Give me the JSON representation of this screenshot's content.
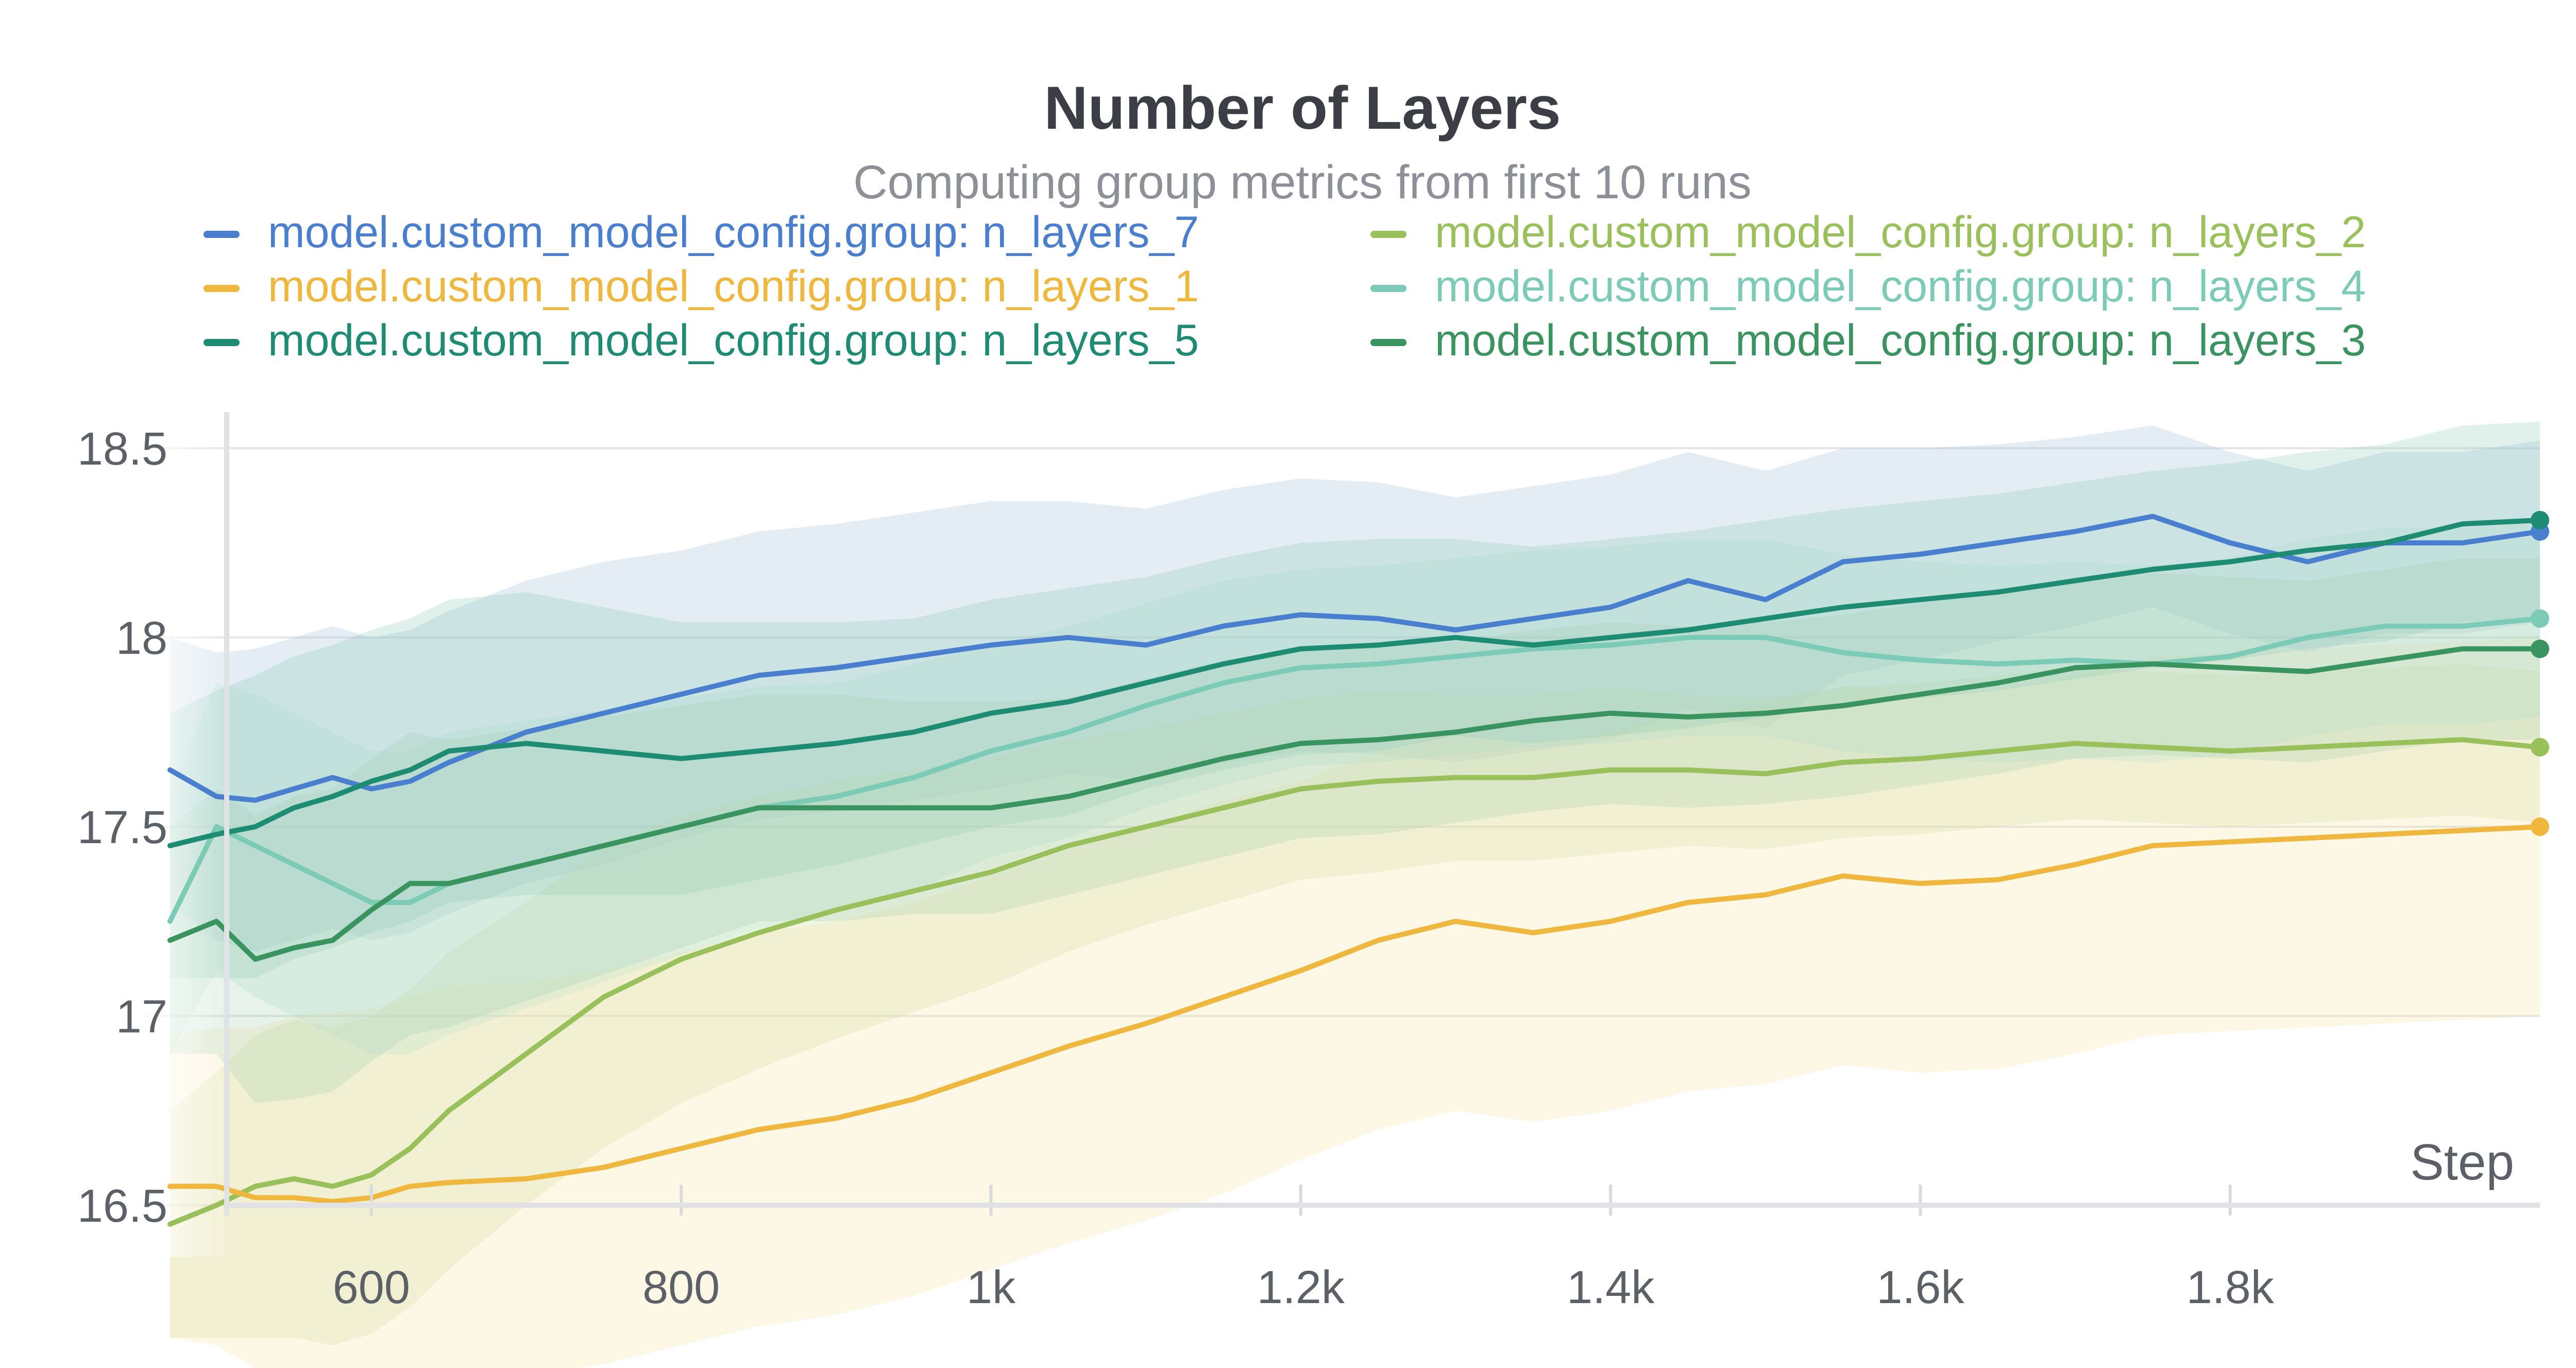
{
  "chart_data": {
    "type": "line",
    "title": "Number of Layers",
    "subtitle": "Computing group metrics from first 10 runs",
    "xlabel": "Step",
    "ylabel": "",
    "xlim": [
      470,
      2000
    ],
    "ylim": [
      16.5,
      18.65
    ],
    "xticks": [
      600,
      800,
      1000,
      1200,
      1400,
      1600,
      1800
    ],
    "xtick_labels": [
      "600",
      "800",
      "1k",
      "1.2k",
      "1.4k",
      "1.6k",
      "1.8k"
    ],
    "yticks": [
      16.5,
      17,
      17.5,
      18,
      18.5
    ],
    "ytick_labels": [
      "16.5",
      "17",
      "17.5",
      "18",
      "18.5"
    ],
    "grid": true,
    "legend_position": "top",
    "series": [
      {
        "name": "model.custom_model_config.group: n_layers_7",
        "color": "#4a7fcf",
        "band_color": "#9fbfd9",
        "x": [
          470,
          500,
          525,
          550,
          575,
          600,
          625,
          650,
          700,
          750,
          800,
          850,
          900,
          950,
          1000,
          1050,
          1100,
          1150,
          1200,
          1250,
          1300,
          1350,
          1400,
          1450,
          1500,
          1550,
          1600,
          1650,
          1700,
          1750,
          1800,
          1850,
          1900,
          1950,
          2000
        ],
        "y": [
          17.65,
          17.58,
          17.57,
          17.6,
          17.63,
          17.6,
          17.62,
          17.67,
          17.75,
          17.8,
          17.85,
          17.9,
          17.92,
          17.95,
          17.98,
          18.0,
          17.98,
          18.03,
          18.06,
          18.05,
          18.02,
          18.05,
          18.08,
          18.15,
          18.1,
          18.2,
          18.22,
          18.25,
          18.28,
          18.32,
          18.25,
          18.2,
          18.25,
          18.25,
          18.28
        ],
        "band": [
          0.35,
          0.38,
          0.4,
          0.4,
          0.4,
          0.4,
          0.4,
          0.4,
          0.4,
          0.4,
          0.38,
          0.38,
          0.38,
          0.38,
          0.38,
          0.36,
          0.36,
          0.36,
          0.36,
          0.36,
          0.35,
          0.35,
          0.35,
          0.34,
          0.34,
          0.3,
          0.28,
          0.26,
          0.25,
          0.24,
          0.24,
          0.24,
          0.24,
          0.24,
          0.24
        ]
      },
      {
        "name": "model.custom_model_config.group: n_layers_2",
        "color": "#99c05a",
        "band_color": "#c8de9c",
        "x": [
          470,
          500,
          525,
          550,
          575,
          600,
          625,
          650,
          700,
          750,
          800,
          850,
          900,
          950,
          1000,
          1050,
          1100,
          1150,
          1200,
          1250,
          1300,
          1350,
          1400,
          1450,
          1500,
          1550,
          1600,
          1650,
          1700,
          1750,
          1800,
          1850,
          1900,
          1950,
          2000
        ],
        "y": [
          16.45,
          16.5,
          16.55,
          16.57,
          16.55,
          16.58,
          16.65,
          16.75,
          16.9,
          17.05,
          17.15,
          17.22,
          17.28,
          17.33,
          17.38,
          17.45,
          17.5,
          17.55,
          17.6,
          17.62,
          17.63,
          17.63,
          17.65,
          17.65,
          17.64,
          17.67,
          17.68,
          17.7,
          17.72,
          17.71,
          17.7,
          17.71,
          17.72,
          17.73,
          17.71
        ],
        "band": [
          0.3,
          0.35,
          0.4,
          0.42,
          0.42,
          0.42,
          0.42,
          0.42,
          0.4,
          0.4,
          0.38,
          0.36,
          0.34,
          0.32,
          0.3,
          0.28,
          0.26,
          0.25,
          0.24,
          0.24,
          0.22,
          0.22,
          0.22,
          0.2,
          0.2,
          0.2,
          0.2,
          0.2,
          0.2,
          0.2,
          0.2,
          0.2,
          0.2,
          0.2,
          0.2
        ]
      },
      {
        "name": "model.custom_model_config.group: n_layers_1",
        "color": "#efb73e",
        "band_color": "#f7e3a6",
        "x": [
          470,
          500,
          525,
          550,
          575,
          600,
          625,
          650,
          700,
          750,
          800,
          850,
          900,
          950,
          1000,
          1050,
          1100,
          1150,
          1200,
          1250,
          1300,
          1350,
          1400,
          1450,
          1500,
          1550,
          1600,
          1650,
          1700,
          1750,
          1800,
          1850,
          1900,
          1950,
          2000
        ],
        "y": [
          16.55,
          16.55,
          16.52,
          16.52,
          16.51,
          16.52,
          16.55,
          16.56,
          16.57,
          16.6,
          16.65,
          16.7,
          16.73,
          16.78,
          16.85,
          16.92,
          16.98,
          17.05,
          17.12,
          17.2,
          17.25,
          17.22,
          17.25,
          17.3,
          17.32,
          17.37,
          17.35,
          17.36,
          17.4,
          17.45,
          17.46,
          17.47,
          17.48,
          17.49,
          17.5
        ],
        "band": [
          0.4,
          0.42,
          0.45,
          0.48,
          0.5,
          0.5,
          0.5,
          0.52,
          0.52,
          0.52,
          0.52,
          0.52,
          0.52,
          0.52,
          0.52,
          0.52,
          0.52,
          0.52,
          0.5,
          0.5,
          0.5,
          0.5,
          0.5,
          0.5,
          0.5,
          0.5,
          0.5,
          0.5,
          0.5,
          0.5,
          0.5,
          0.5,
          0.5,
          0.5,
          0.5
        ]
      },
      {
        "name": "model.custom_model_config.group: n_layers_4",
        "color": "#7ccbb6",
        "band_color": "#b7e2d2",
        "x": [
          470,
          500,
          525,
          550,
          575,
          600,
          625,
          650,
          700,
          750,
          800,
          850,
          900,
          950,
          1000,
          1050,
          1100,
          1150,
          1200,
          1250,
          1300,
          1350,
          1400,
          1450,
          1500,
          1550,
          1600,
          1650,
          1700,
          1750,
          1800,
          1850,
          1900,
          1950,
          2000
        ],
        "y": [
          17.25,
          17.5,
          17.45,
          17.4,
          17.35,
          17.3,
          17.3,
          17.35,
          17.4,
          17.45,
          17.5,
          17.55,
          17.58,
          17.63,
          17.7,
          17.75,
          17.82,
          17.88,
          17.92,
          17.93,
          17.95,
          17.97,
          17.98,
          18.0,
          18.0,
          17.96,
          17.94,
          17.93,
          17.94,
          17.93,
          17.95,
          18.0,
          18.03,
          18.03,
          18.05
        ],
        "band": [
          0.35,
          0.38,
          0.4,
          0.4,
          0.4,
          0.4,
          0.4,
          0.4,
          0.38,
          0.36,
          0.34,
          0.32,
          0.3,
          0.3,
          0.28,
          0.28,
          0.27,
          0.27,
          0.26,
          0.26,
          0.26,
          0.26,
          0.26,
          0.26,
          0.26,
          0.26,
          0.26,
          0.26,
          0.26,
          0.26,
          0.26,
          0.26,
          0.26,
          0.26,
          0.26
        ]
      },
      {
        "name": "model.custom_model_config.group: n_layers_5",
        "color": "#1e8c72",
        "band_color": "#8ec8b8",
        "x": [
          470,
          500,
          525,
          550,
          575,
          600,
          625,
          650,
          700,
          750,
          800,
          850,
          900,
          950,
          1000,
          1050,
          1100,
          1150,
          1200,
          1250,
          1300,
          1350,
          1400,
          1450,
          1500,
          1550,
          1600,
          1650,
          1700,
          1750,
          1800,
          1850,
          1900,
          1950,
          2000
        ],
        "y": [
          17.45,
          17.48,
          17.5,
          17.55,
          17.58,
          17.62,
          17.65,
          17.7,
          17.72,
          17.7,
          17.68,
          17.7,
          17.72,
          17.75,
          17.8,
          17.83,
          17.88,
          17.93,
          17.97,
          17.98,
          18.0,
          17.98,
          18.0,
          18.02,
          18.05,
          18.08,
          18.1,
          18.12,
          18.15,
          18.18,
          18.2,
          18.23,
          18.25,
          18.3,
          18.31
        ],
        "band": [
          0.35,
          0.38,
          0.4,
          0.4,
          0.4,
          0.4,
          0.4,
          0.4,
          0.4,
          0.38,
          0.36,
          0.34,
          0.32,
          0.3,
          0.3,
          0.3,
          0.28,
          0.28,
          0.28,
          0.28,
          0.26,
          0.26,
          0.26,
          0.26,
          0.26,
          0.26,
          0.26,
          0.26,
          0.26,
          0.26,
          0.26,
          0.26,
          0.26,
          0.26,
          0.26
        ]
      },
      {
        "name": "model.custom_model_config.group: n_layers_3",
        "color": "#3a9460",
        "band_color": "#a4d2b4",
        "x": [
          470,
          500,
          525,
          550,
          575,
          600,
          625,
          650,
          700,
          750,
          800,
          850,
          900,
          950,
          1000,
          1050,
          1100,
          1150,
          1200,
          1250,
          1300,
          1350,
          1400,
          1450,
          1500,
          1550,
          1600,
          1650,
          1700,
          1750,
          1800,
          1850,
          1900,
          1950,
          2000
        ],
        "y": [
          17.2,
          17.25,
          17.15,
          17.18,
          17.2,
          17.28,
          17.35,
          17.35,
          17.4,
          17.45,
          17.5,
          17.55,
          17.55,
          17.55,
          17.55,
          17.58,
          17.63,
          17.68,
          17.72,
          17.73,
          17.75,
          17.78,
          17.8,
          17.79,
          17.8,
          17.82,
          17.85,
          17.88,
          17.92,
          17.93,
          17.92,
          17.91,
          17.94,
          17.97,
          17.97
        ],
        "band": [
          0.3,
          0.35,
          0.38,
          0.4,
          0.4,
          0.4,
          0.4,
          0.38,
          0.36,
          0.34,
          0.32,
          0.3,
          0.3,
          0.28,
          0.28,
          0.26,
          0.26,
          0.26,
          0.25,
          0.25,
          0.24,
          0.24,
          0.24,
          0.24,
          0.24,
          0.24,
          0.24,
          0.24,
          0.24,
          0.24,
          0.24,
          0.24,
          0.24,
          0.24,
          0.24
        ]
      }
    ]
  }
}
